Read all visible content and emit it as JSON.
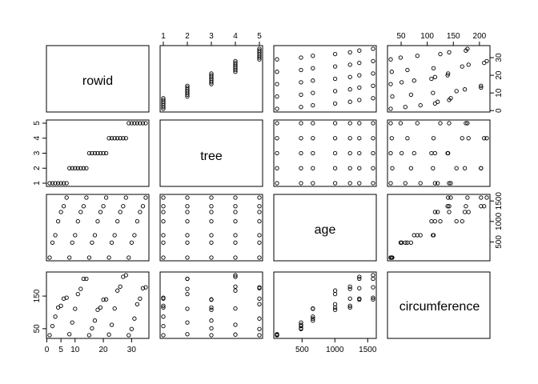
{
  "chart_data": {
    "type": "scatter",
    "subtype": "scatterplot-matrix",
    "title": "",
    "variables": [
      "rowid",
      "tree",
      "age",
      "circumference"
    ],
    "ranges": {
      "rowid": [
        1,
        35
      ],
      "tree": [
        1,
        5
      ],
      "age": [
        118,
        1582
      ],
      "circumference": [
        30,
        214
      ]
    },
    "ticks": {
      "rowid": [
        0,
        5,
        10,
        20,
        30
      ],
      "tree": [
        1,
        2,
        3,
        4,
        5
      ],
      "age": [
        500,
        1000,
        1500
      ],
      "circumference": [
        50,
        150
      ]
    },
    "tick_labels": {
      "rowid_bottom": [
        "0",
        "5",
        "10",
        "20",
        "30"
      ],
      "rowid_right": [
        "0",
        "10",
        "20",
        "30"
      ],
      "tree_top": [
        "1",
        "2",
        "3",
        "4",
        "5"
      ],
      "tree_left": [
        "1",
        "2",
        "3",
        "4",
        "5"
      ],
      "age_bottom": [
        "500",
        "1000",
        "1500"
      ],
      "age_right": [
        "500",
        "1000",
        "1500"
      ],
      "circumference_top": [
        "50",
        "100",
        "150",
        "200"
      ],
      "circumference_left": [
        "50",
        "150"
      ]
    },
    "records": [
      {
        "rowid": 1,
        "tree": 1,
        "age": 118,
        "circumference": 30
      },
      {
        "rowid": 2,
        "tree": 1,
        "age": 484,
        "circumference": 58
      },
      {
        "rowid": 3,
        "tree": 1,
        "age": 664,
        "circumference": 87
      },
      {
        "rowid": 4,
        "tree": 1,
        "age": 1004,
        "circumference": 115
      },
      {
        "rowid": 5,
        "tree": 1,
        "age": 1231,
        "circumference": 120
      },
      {
        "rowid": 6,
        "tree": 1,
        "age": 1372,
        "circumference": 142
      },
      {
        "rowid": 7,
        "tree": 1,
        "age": 1582,
        "circumference": 145
      },
      {
        "rowid": 8,
        "tree": 2,
        "age": 118,
        "circumference": 33
      },
      {
        "rowid": 9,
        "tree": 2,
        "age": 484,
        "circumference": 69
      },
      {
        "rowid": 10,
        "tree": 2,
        "age": 664,
        "circumference": 111
      },
      {
        "rowid": 11,
        "tree": 2,
        "age": 1004,
        "circumference": 156
      },
      {
        "rowid": 12,
        "tree": 2,
        "age": 1231,
        "circumference": 172
      },
      {
        "rowid": 13,
        "tree": 2,
        "age": 1372,
        "circumference": 203
      },
      {
        "rowid": 14,
        "tree": 2,
        "age": 1582,
        "circumference": 203
      },
      {
        "rowid": 15,
        "tree": 3,
        "age": 118,
        "circumference": 30
      },
      {
        "rowid": 16,
        "tree": 3,
        "age": 484,
        "circumference": 51
      },
      {
        "rowid": 17,
        "tree": 3,
        "age": 664,
        "circumference": 75
      },
      {
        "rowid": 18,
        "tree": 3,
        "age": 1004,
        "circumference": 108
      },
      {
        "rowid": 19,
        "tree": 3,
        "age": 1231,
        "circumference": 115
      },
      {
        "rowid": 20,
        "tree": 3,
        "age": 1372,
        "circumference": 139
      },
      {
        "rowid": 21,
        "tree": 3,
        "age": 1582,
        "circumference": 140
      },
      {
        "rowid": 22,
        "tree": 4,
        "age": 118,
        "circumference": 32
      },
      {
        "rowid": 23,
        "tree": 4,
        "age": 484,
        "circumference": 62
      },
      {
        "rowid": 24,
        "tree": 4,
        "age": 664,
        "circumference": 112
      },
      {
        "rowid": 25,
        "tree": 4,
        "age": 1004,
        "circumference": 167
      },
      {
        "rowid": 26,
        "tree": 4,
        "age": 1231,
        "circumference": 179
      },
      {
        "rowid": 27,
        "tree": 4,
        "age": 1372,
        "circumference": 209
      },
      {
        "rowid": 28,
        "tree": 4,
        "age": 1582,
        "circumference": 214
      },
      {
        "rowid": 29,
        "tree": 5,
        "age": 118,
        "circumference": 30
      },
      {
        "rowid": 30,
        "tree": 5,
        "age": 484,
        "circumference": 49
      },
      {
        "rowid": 31,
        "tree": 5,
        "age": 664,
        "circumference": 81
      },
      {
        "rowid": 32,
        "tree": 5,
        "age": 1004,
        "circumference": 125
      },
      {
        "rowid": 33,
        "tree": 5,
        "age": 1231,
        "circumference": 142
      },
      {
        "rowid": 34,
        "tree": 5,
        "age": 1372,
        "circumference": 174
      },
      {
        "rowid": 35,
        "tree": 5,
        "age": 1582,
        "circumference": 177
      }
    ],
    "xlabel": "",
    "ylabel": "",
    "grid": false,
    "legend": "none"
  }
}
